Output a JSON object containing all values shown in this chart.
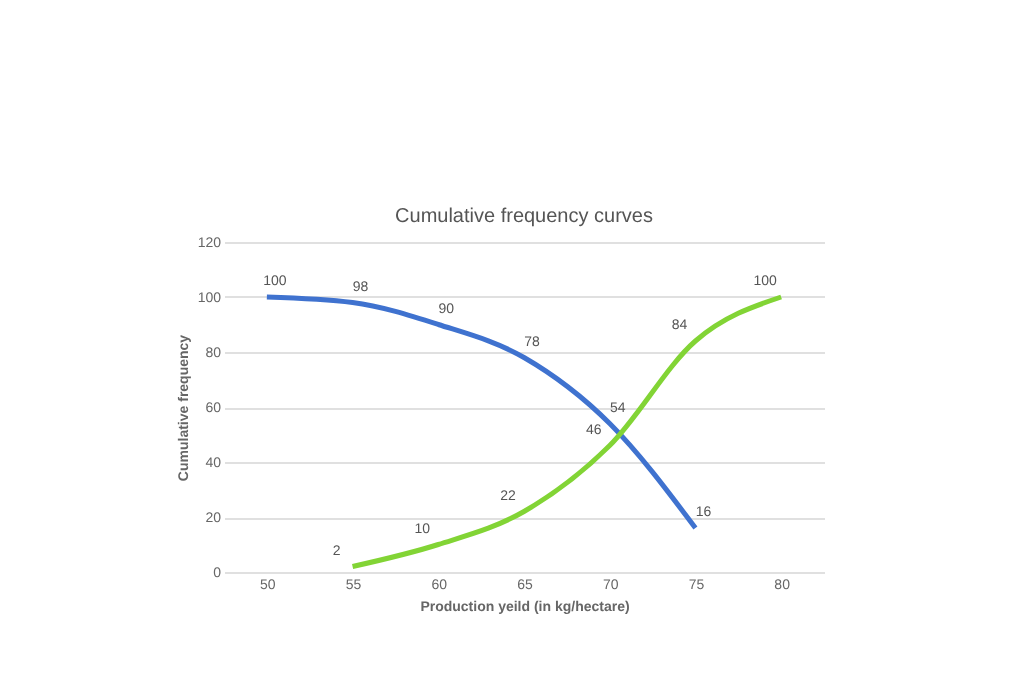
{
  "chart_data": {
    "type": "line",
    "title": "Cumulative frequency curves",
    "xlabel": "Production yeild (in kg/hectare)",
    "ylabel": "Cumulative frequency",
    "categories": [
      "50",
      "55",
      "60",
      "65",
      "70",
      "75",
      "80"
    ],
    "series": [
      {
        "color": "#3f72cf",
        "values": [
          100,
          98,
          90,
          78,
          54,
          16,
          null
        ]
      },
      {
        "color": "#82d435",
        "values": [
          null,
          2,
          10,
          22,
          46,
          84,
          100
        ]
      }
    ],
    "ylim": [
      0,
      120
    ],
    "yticks": [
      0,
      20,
      40,
      60,
      80,
      100,
      120
    ],
    "grid": "y",
    "data_labels": true,
    "legend": false,
    "marker": "none",
    "line_style": "solid"
  }
}
